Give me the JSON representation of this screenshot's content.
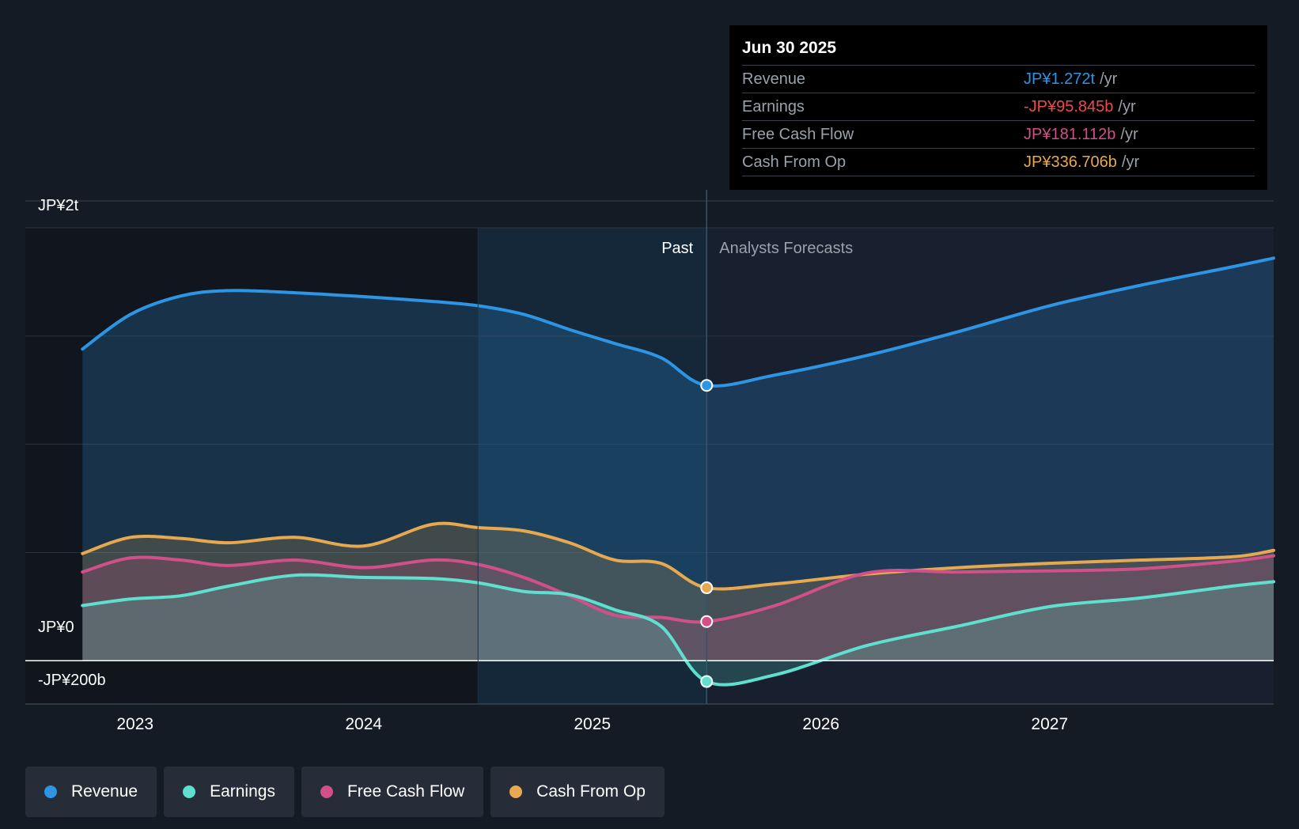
{
  "chart_data": {
    "type": "line",
    "title": "",
    "xlabel": "",
    "ylabel": "",
    "x_ticks": [
      "2023",
      "2024",
      "2025",
      "2026",
      "2027"
    ],
    "x_tick_values": [
      2023,
      2024,
      2025,
      2026,
      2027
    ],
    "xlim": [
      2022.52,
      2027.98
    ],
    "y_tick_labels": [
      "JP¥2t",
      "JP¥0",
      "-JP¥200b"
    ],
    "y_tick_values": [
      2000,
      0,
      -200
    ],
    "ylim": [
      -200,
      2000
    ],
    "units": "JP¥ billions",
    "past_start": 2024.5,
    "now": 2025.5,
    "past_label": "Past",
    "forecast_label": "Analysts Forecasts",
    "series": [
      {
        "name": "Revenue",
        "color": "#2d95e3",
        "area": true,
        "points": [
          [
            2022.77,
            1440
          ],
          [
            2022.98,
            1600
          ],
          [
            2023.2,
            1685
          ],
          [
            2023.41,
            1710
          ],
          [
            2023.7,
            1700
          ],
          [
            2024.0,
            1682
          ],
          [
            2024.3,
            1660
          ],
          [
            2024.5,
            1640
          ],
          [
            2024.7,
            1600
          ],
          [
            2024.9,
            1530
          ],
          [
            2025.1,
            1465
          ],
          [
            2025.3,
            1400
          ],
          [
            2025.5,
            1272
          ],
          [
            2025.8,
            1320
          ],
          [
            2026.2,
            1410
          ],
          [
            2026.6,
            1520
          ],
          [
            2027.0,
            1640
          ],
          [
            2027.4,
            1735
          ],
          [
            2027.8,
            1820
          ],
          [
            2027.98,
            1860
          ]
        ]
      },
      {
        "name": "Cash From Op",
        "color": "#e6a950",
        "area": true,
        "points": [
          [
            2022.77,
            495
          ],
          [
            2022.98,
            570
          ],
          [
            2023.2,
            565
          ],
          [
            2023.41,
            545
          ],
          [
            2023.7,
            570
          ],
          [
            2024.0,
            530
          ],
          [
            2024.3,
            630
          ],
          [
            2024.5,
            615
          ],
          [
            2024.7,
            600
          ],
          [
            2024.9,
            545
          ],
          [
            2025.1,
            465
          ],
          [
            2025.3,
            450
          ],
          [
            2025.5,
            337
          ],
          [
            2025.8,
            355
          ],
          [
            2026.2,
            400
          ],
          [
            2026.6,
            430
          ],
          [
            2027.0,
            450
          ],
          [
            2027.4,
            465
          ],
          [
            2027.8,
            480
          ],
          [
            2027.98,
            510
          ]
        ]
      },
      {
        "name": "Free Cash Flow",
        "color": "#d1508a",
        "area": true,
        "points": [
          [
            2022.77,
            410
          ],
          [
            2022.98,
            475
          ],
          [
            2023.2,
            465
          ],
          [
            2023.41,
            440
          ],
          [
            2023.7,
            465
          ],
          [
            2024.0,
            430
          ],
          [
            2024.3,
            465
          ],
          [
            2024.5,
            445
          ],
          [
            2024.7,
            385
          ],
          [
            2024.9,
            300
          ],
          [
            2025.1,
            210
          ],
          [
            2025.3,
            200
          ],
          [
            2025.5,
            181
          ],
          [
            2025.8,
            255
          ],
          [
            2026.2,
            405
          ],
          [
            2026.6,
            410
          ],
          [
            2027.0,
            415
          ],
          [
            2027.4,
            425
          ],
          [
            2027.8,
            460
          ],
          [
            2027.98,
            485
          ]
        ]
      },
      {
        "name": "Earnings",
        "color": "#5fe0cf",
        "area": true,
        "points": [
          [
            2022.77,
            255
          ],
          [
            2022.98,
            285
          ],
          [
            2023.2,
            300
          ],
          [
            2023.41,
            345
          ],
          [
            2023.7,
            395
          ],
          [
            2024.0,
            385
          ],
          [
            2024.3,
            380
          ],
          [
            2024.5,
            360
          ],
          [
            2024.7,
            320
          ],
          [
            2024.9,
            305
          ],
          [
            2025.1,
            235
          ],
          [
            2025.3,
            160
          ],
          [
            2025.5,
            -96
          ],
          [
            2025.8,
            -65
          ],
          [
            2026.2,
            70
          ],
          [
            2026.6,
            160
          ],
          [
            2027.0,
            250
          ],
          [
            2027.4,
            290
          ],
          [
            2027.8,
            345
          ],
          [
            2027.98,
            365
          ]
        ]
      }
    ],
    "tooltip": {
      "date": "Jun 30 2025",
      "unit": "/yr",
      "rows": [
        {
          "label": "Revenue",
          "value": "JP¥1.272t",
          "color": "#2d95e3"
        },
        {
          "label": "Earnings",
          "value": "-JP¥95.845b",
          "color": "#ee4a4a"
        },
        {
          "label": "Free Cash Flow",
          "value": "JP¥181.112b",
          "color": "#d1508a"
        },
        {
          "label": "Cash From Op",
          "value": "JP¥336.706b",
          "color": "#e6a950"
        }
      ]
    },
    "legend": [
      {
        "label": "Revenue",
        "color": "#2d95e3"
      },
      {
        "label": "Earnings",
        "color": "#5fe0cf"
      },
      {
        "label": "Free Cash Flow",
        "color": "#d1508a"
      },
      {
        "label": "Cash From Op",
        "color": "#e6a950"
      }
    ]
  }
}
